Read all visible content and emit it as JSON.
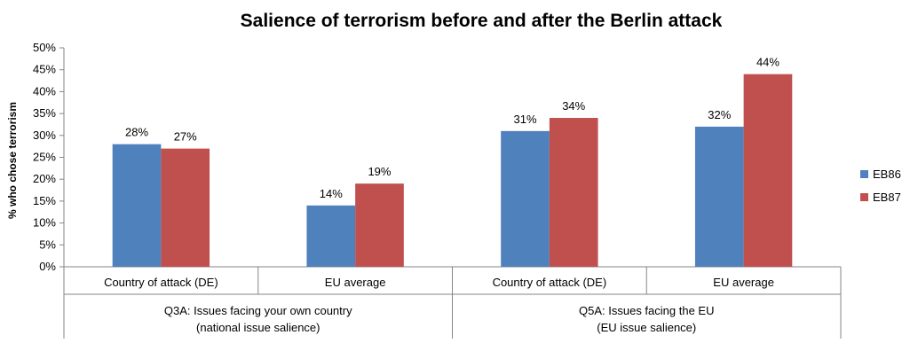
{
  "chart_data": {
    "type": "bar",
    "title": "Salience of terrorism before and after the Berlin attack",
    "ylabel": "% who chose terrorism",
    "ylim": [
      0,
      50
    ],
    "ytick_step": 5,
    "y_unit": "%",
    "groups": [
      {
        "label_lines": [
          "Q3A: Issues facing your own country",
          "(national issue salience)"
        ],
        "categories": [
          "Country of attack (DE)",
          "EU average"
        ]
      },
      {
        "label_lines": [
          "Q5A: Issues facing the EU",
          "(EU issue salience)"
        ],
        "categories": [
          "Country of attack (DE)",
          "EU average"
        ]
      }
    ],
    "categories": [
      "Country of attack (DE)",
      "EU average",
      "Country of attack (DE)",
      "EU average"
    ],
    "series": [
      {
        "name": "EB86",
        "color": "#4F81BD",
        "values": [
          28,
          14,
          31,
          32
        ]
      },
      {
        "name": "EB87",
        "color": "#C0504D",
        "values": [
          27,
          19,
          34,
          44
        ]
      }
    ],
    "legend": "right",
    "grid": false
  }
}
